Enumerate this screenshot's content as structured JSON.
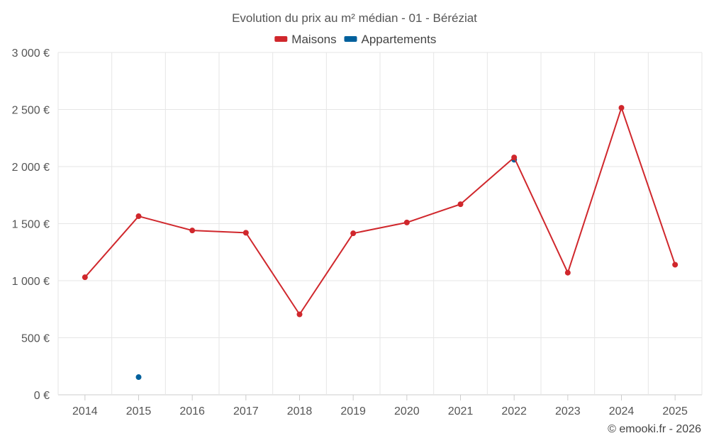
{
  "chart_data": {
    "type": "line",
    "title": "Evolution du prix au m² médian - 01 - Béréziat",
    "categories": [
      "2014",
      "2015",
      "2016",
      "2017",
      "2018",
      "2019",
      "2020",
      "2021",
      "2022",
      "2023",
      "2024",
      "2025"
    ],
    "series": [
      {
        "name": "Maisons",
        "color": "#d0272c",
        "values": [
          1030,
          1565,
          1440,
          1420,
          705,
          1415,
          1510,
          1670,
          2080,
          1070,
          2515,
          1140
        ]
      },
      {
        "name": "Appartements",
        "color": "#00609c",
        "values": [
          null,
          155,
          null,
          null,
          null,
          null,
          null,
          null,
          2060,
          null,
          null,
          null
        ]
      }
    ],
    "ylim": [
      0,
      3000
    ],
    "yticks": [
      0,
      500,
      1000,
      1500,
      2000,
      2500,
      3000
    ],
    "ytick_labels": [
      "0 €",
      "500 €",
      "1 000 €",
      "1 500 €",
      "2 000 €",
      "2 500 €",
      "3 000 €"
    ],
    "xlabel": "",
    "ylabel": "",
    "grid": true,
    "legend_position": "top-center"
  },
  "credit": "© emooki.fr - 2026"
}
